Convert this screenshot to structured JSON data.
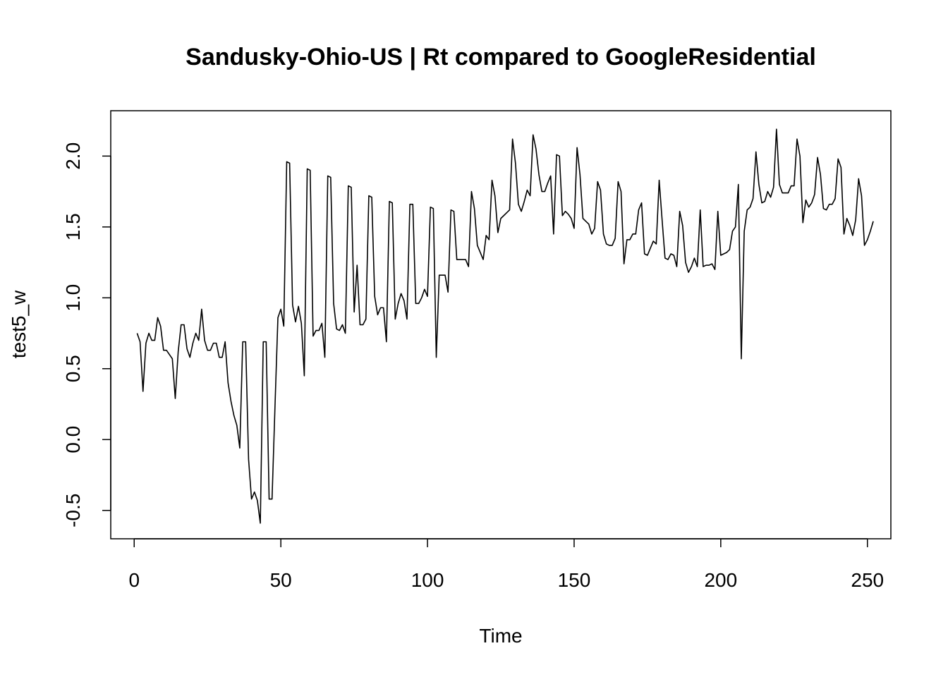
{
  "chart_data": {
    "type": "line",
    "title": "Sandusky-Ohio-US | Rt compared to GoogleResidential",
    "xlabel": "Time",
    "ylabel": "test5_w",
    "xlim": [
      -8,
      258
    ],
    "ylim": [
      -0.7,
      2.32
    ],
    "x_ticks": [
      0,
      50,
      100,
      150,
      200,
      250
    ],
    "y_ticks": [
      -0.5,
      0.0,
      0.5,
      1.0,
      1.5,
      2.0
    ],
    "x_tick_labels": [
      "0",
      "50",
      "100",
      "150",
      "200",
      "250"
    ],
    "y_tick_labels": [
      "-0.5",
      "0.0",
      "0.5",
      "1.0",
      "1.5",
      "2.0"
    ],
    "grid": false,
    "line_color": "#000000",
    "series": [
      {
        "x_start": 1,
        "x_step": 1,
        "values": [
          0.75,
          0.69,
          0.34,
          0.68,
          0.75,
          0.7,
          0.7,
          0.86,
          0.8,
          0.63,
          0.63,
          0.6,
          0.57,
          0.29,
          0.62,
          0.81,
          0.81,
          0.64,
          0.58,
          0.68,
          0.75,
          0.7,
          0.92,
          0.7,
          0.63,
          0.63,
          0.68,
          0.68,
          0.58,
          0.58,
          0.69,
          0.4,
          0.27,
          0.17,
          0.1,
          -0.06,
          0.69,
          0.69,
          -0.14,
          -0.42,
          -0.37,
          -0.43,
          -0.59,
          0.69,
          0.69,
          -0.42,
          -0.42,
          0.23,
          0.86,
          0.92,
          0.8,
          1.96,
          1.95,
          0.95,
          0.83,
          0.94,
          0.82,
          0.45,
          1.91,
          1.9,
          0.73,
          0.77,
          0.77,
          0.82,
          0.58,
          1.86,
          1.85,
          0.96,
          0.78,
          0.77,
          0.81,
          0.75,
          1.79,
          1.78,
          0.9,
          1.23,
          0.81,
          0.81,
          0.85,
          1.72,
          1.71,
          1.01,
          0.88,
          0.93,
          0.93,
          0.69,
          1.68,
          1.67,
          0.85,
          0.96,
          1.03,
          0.98,
          0.85,
          1.66,
          1.66,
          0.96,
          0.96,
          1.0,
          1.06,
          1.01,
          1.64,
          1.63,
          0.58,
          1.16,
          1.16,
          1.16,
          1.04,
          1.62,
          1.61,
          1.27,
          1.27,
          1.27,
          1.27,
          1.22,
          1.75,
          1.63,
          1.37,
          1.32,
          1.27,
          1.44,
          1.41,
          1.83,
          1.72,
          1.46,
          1.56,
          1.58,
          1.6,
          1.62,
          2.12,
          1.95,
          1.66,
          1.61,
          1.68,
          1.76,
          1.72,
          2.15,
          2.05,
          1.87,
          1.75,
          1.75,
          1.81,
          1.86,
          1.45,
          2.01,
          2.0,
          1.58,
          1.61,
          1.59,
          1.56,
          1.49,
          2.06,
          1.87,
          1.56,
          1.54,
          1.52,
          1.45,
          1.49,
          1.82,
          1.76,
          1.45,
          1.38,
          1.37,
          1.37,
          1.42,
          1.82,
          1.75,
          1.24,
          1.41,
          1.41,
          1.45,
          1.45,
          1.62,
          1.67,
          1.31,
          1.3,
          1.35,
          1.4,
          1.38,
          1.83,
          1.55,
          1.28,
          1.27,
          1.31,
          1.3,
          1.22,
          1.61,
          1.51,
          1.25,
          1.18,
          1.22,
          1.28,
          1.22,
          1.62,
          1.22,
          1.23,
          1.23,
          1.24,
          1.2,
          1.61,
          1.3,
          1.31,
          1.32,
          1.34,
          1.47,
          1.5,
          1.8,
          0.57,
          1.47,
          1.62,
          1.64,
          1.7,
          2.03,
          1.8,
          1.67,
          1.68,
          1.75,
          1.71,
          1.78,
          2.19,
          1.8,
          1.74,
          1.74,
          1.74,
          1.79,
          1.79,
          2.12,
          2.0,
          1.53,
          1.69,
          1.64,
          1.67,
          1.73,
          1.99,
          1.87,
          1.63,
          1.62,
          1.66,
          1.66,
          1.7,
          1.98,
          1.92,
          1.45,
          1.56,
          1.51,
          1.44,
          1.55,
          1.84,
          1.72,
          1.37,
          1.41,
          1.47,
          1.54
        ]
      }
    ]
  }
}
